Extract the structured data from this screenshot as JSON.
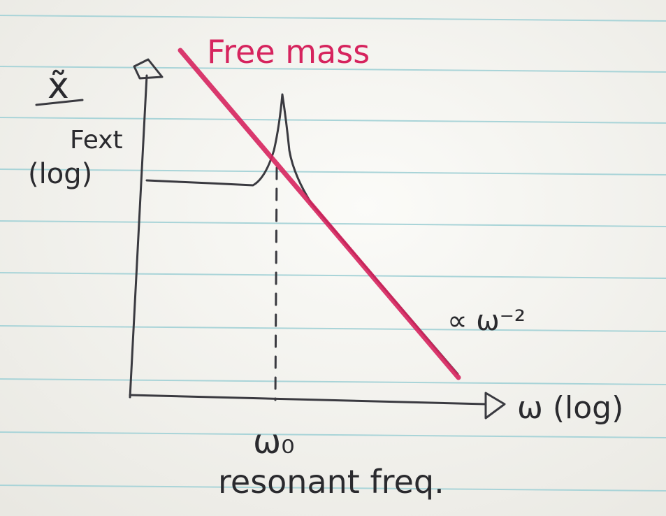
{
  "line_label": "Free mass",
  "y_axis": {
    "numerator": "x̃",
    "denominator": "Fext",
    "scale": "(log)"
  },
  "x_axis": {
    "label": "ω (log)"
  },
  "annotations": {
    "slope": "∝ ω⁻²",
    "resonance": "ω₀",
    "resonance_caption": "resonant freq."
  }
}
